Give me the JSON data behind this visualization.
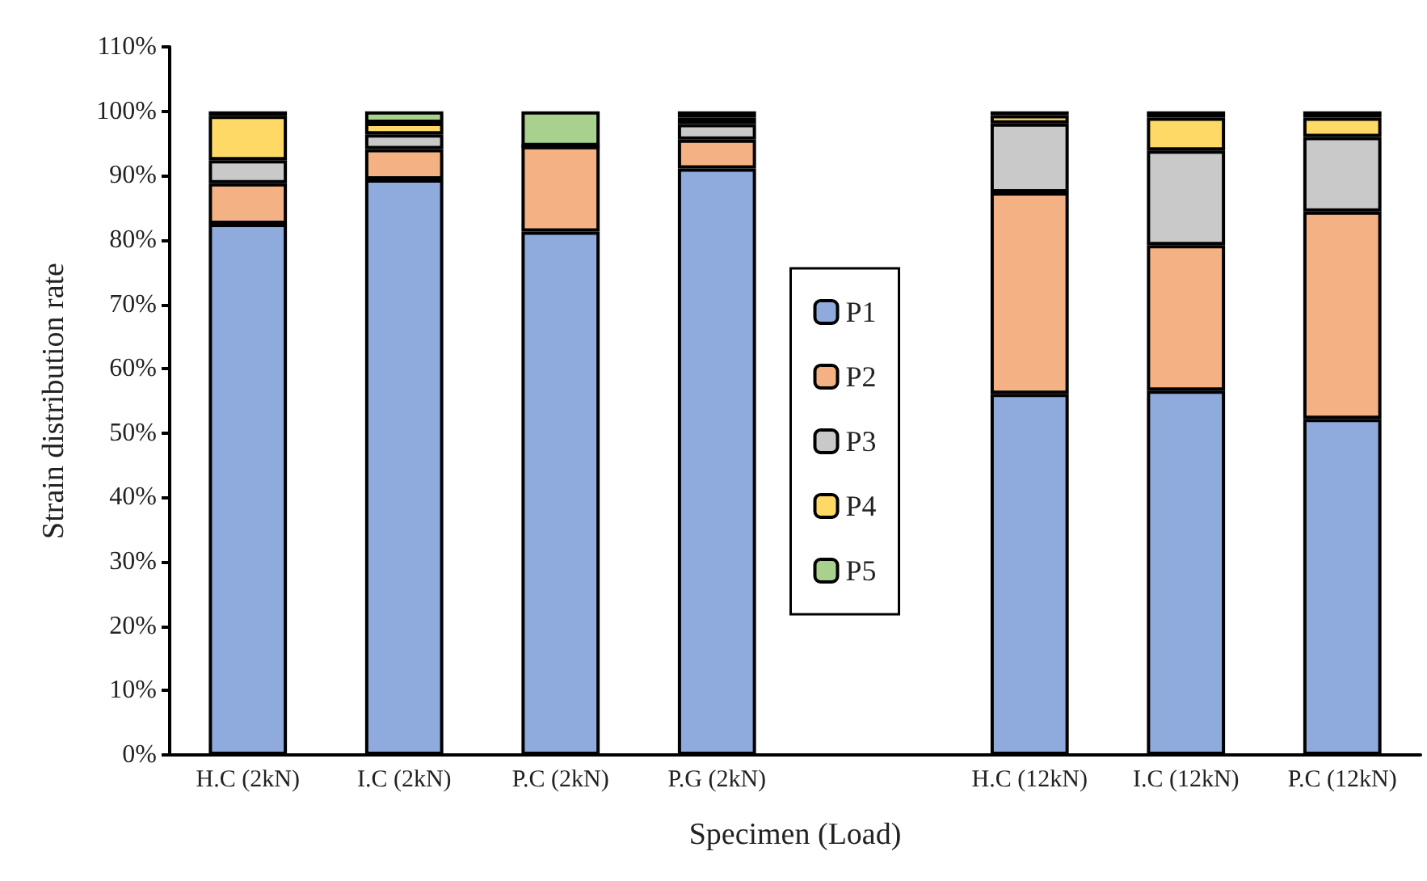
{
  "chart_data": {
    "type": "bar",
    "stacked": true,
    "xlabel": "Specimen (Load)",
    "ylabel": "Strain distribution rate",
    "categories": [
      "H.C (2kN)",
      "I.C (2kN)",
      "P.C (2kN)",
      "P.G (2kN)",
      null,
      "H.C (12kN)",
      "I.C (12kN)",
      "P.C (12kN)"
    ],
    "series": [
      {
        "name": "P1",
        "color": "#8faadc",
        "values": [
          82.5,
          89.4,
          81.3,
          91.1,
          null,
          56.1,
          56.6,
          52.2
        ]
      },
      {
        "name": "P2",
        "color": "#f4b183",
        "values": [
          6.3,
          4.7,
          13.3,
          4.5,
          null,
          31.3,
          22.6,
          32.2
        ]
      },
      {
        "name": "P3",
        "color": "#c9c9c9",
        "values": [
          3.6,
          2.3,
          null,
          2.4,
          null,
          10.7,
          14.7,
          11.6
        ]
      },
      {
        "name": "P4",
        "color": "#ffd966",
        "values": [
          6.9,
          1.8,
          0,
          1.0,
          null,
          1.3,
          5.1,
          3.0
        ]
      },
      {
        "name": "P5",
        "color": "#a9d18e",
        "values": [
          0.7,
          1.8,
          5.4,
          1.0,
          null,
          0.6,
          1.0,
          1.0
        ]
      }
    ],
    "ylim": [
      0,
      110
    ],
    "yticks": [
      {
        "value": 0,
        "label": "0%"
      },
      {
        "value": 10,
        "label": "10%"
      },
      {
        "value": 20,
        "label": "20%"
      },
      {
        "value": 30,
        "label": "30%"
      },
      {
        "value": 40,
        "label": "40%"
      },
      {
        "value": 50,
        "label": "50%"
      },
      {
        "value": 60,
        "label": "60%"
      },
      {
        "value": 70,
        "label": "70%"
      },
      {
        "value": 80,
        "label": "80%"
      },
      {
        "value": 90,
        "label": "90%"
      },
      {
        "value": 100,
        "label": "100%"
      },
      {
        "value": 110,
        "label": "110%"
      }
    ],
    "grid": false,
    "legend": "center"
  }
}
